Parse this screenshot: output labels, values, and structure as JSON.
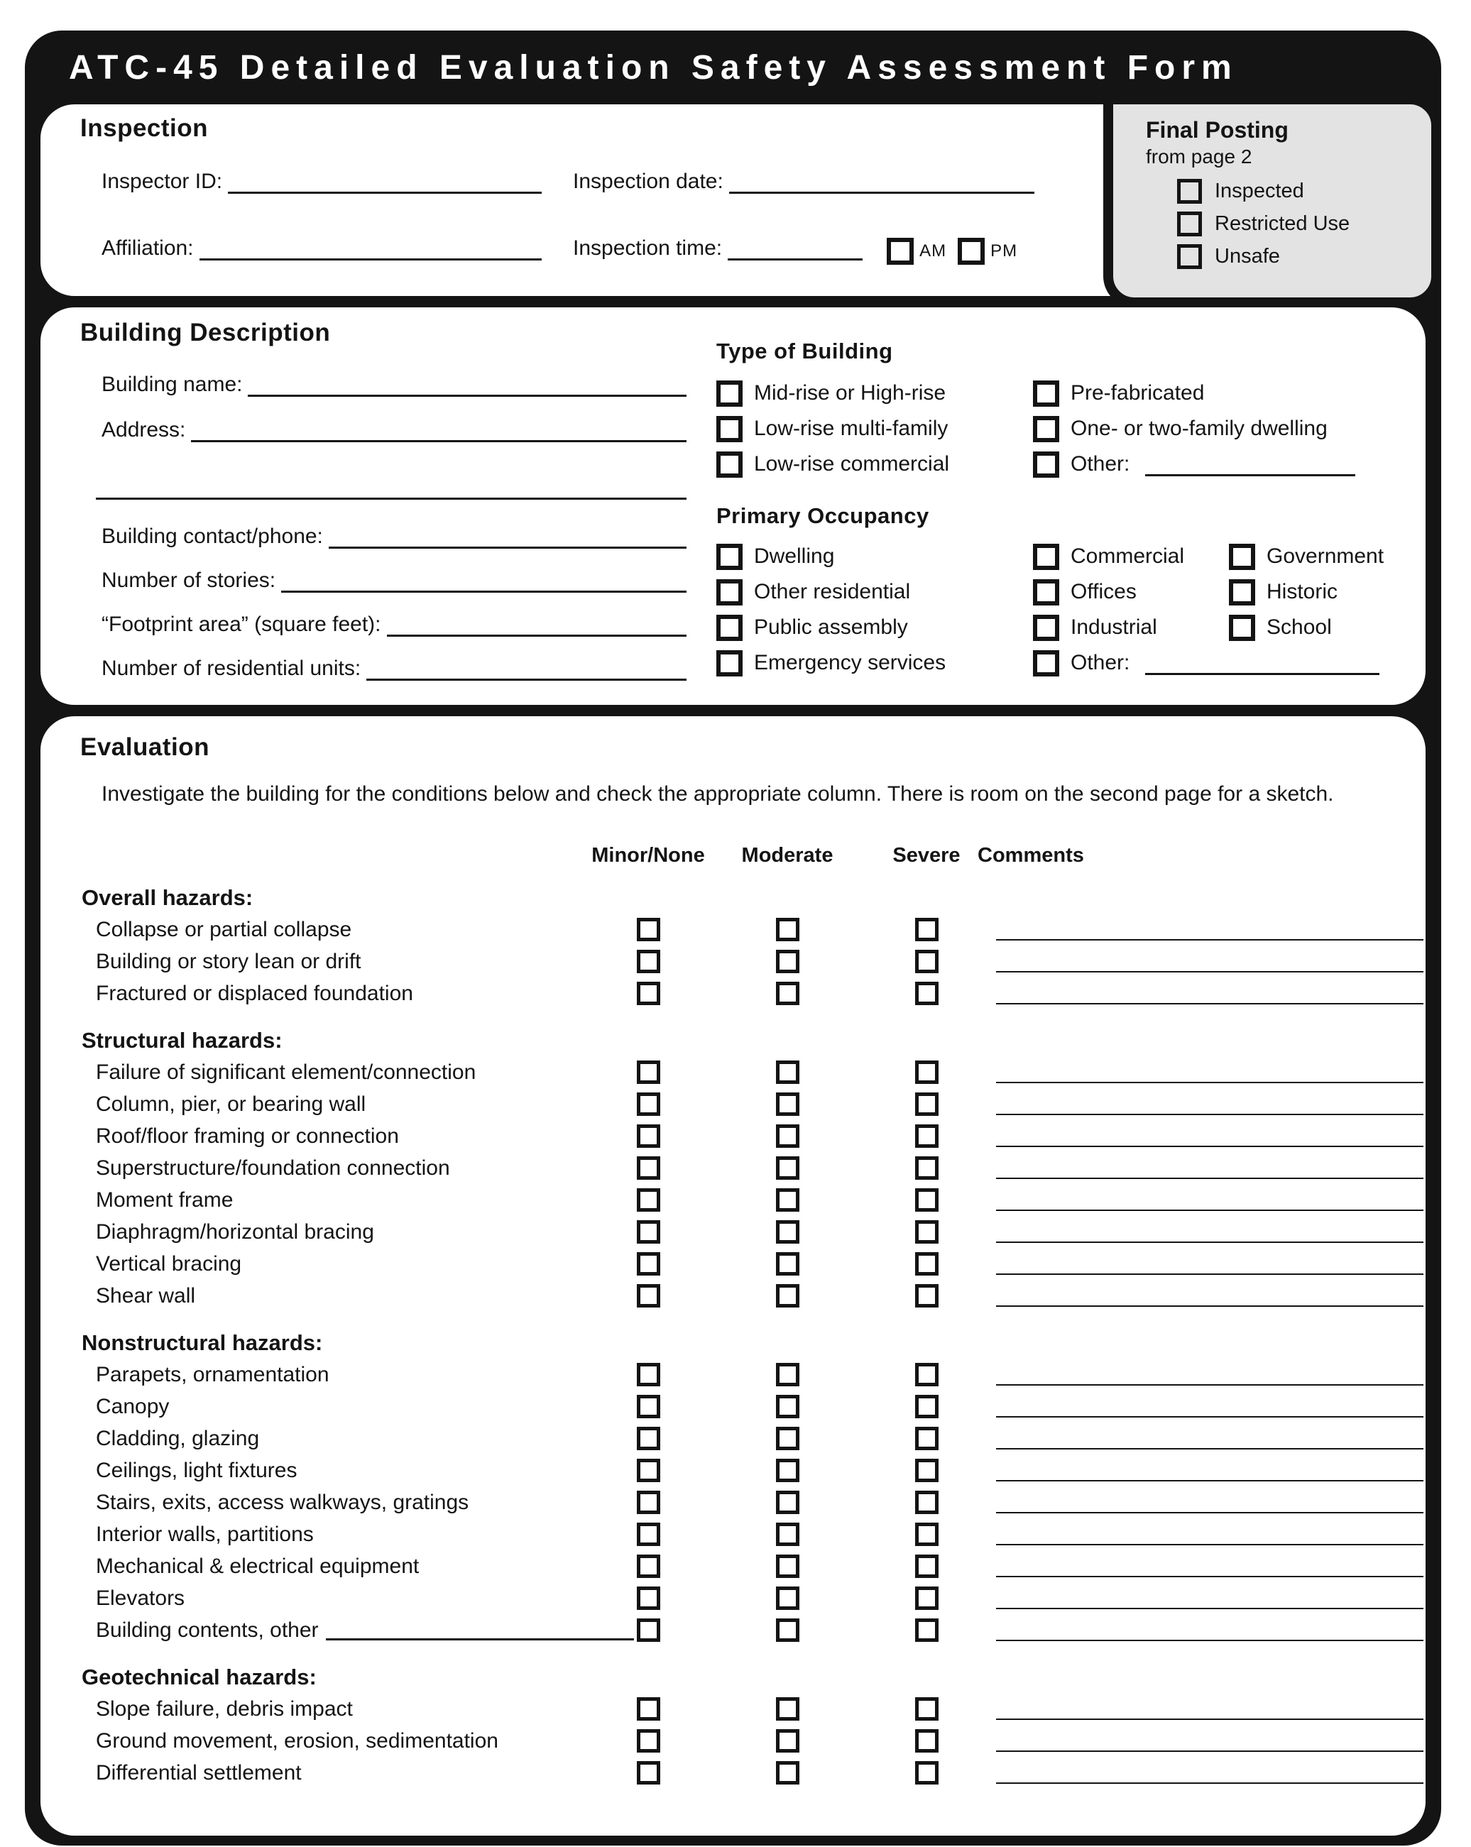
{
  "title": "ATC-45 Detailed Evaluation Safety Assessment Form",
  "colors": {
    "ink": "#141414",
    "panel_gray": "#e3e3e3",
    "paper": "#ffffff"
  },
  "inspection": {
    "heading": "Inspection",
    "fields": {
      "inspector_id": "Inspector ID:",
      "inspection_date": "Inspection date:",
      "affiliation": "Affiliation:",
      "inspection_time": "Inspection time:",
      "am": "AM",
      "pm": "PM"
    },
    "final_posting": {
      "heading": "Final Posting",
      "subheading": "from page 2",
      "options": [
        "Inspected",
        "Restricted Use",
        "Unsafe"
      ]
    }
  },
  "building": {
    "heading": "Building Description",
    "fields": [
      "Building name:",
      "Address:",
      "Building contact/phone:",
      "Number of stories:",
      "“Footprint area” (square feet):",
      "Number of residential units:"
    ],
    "type_of_building": {
      "heading": "Type of Building",
      "columns": [
        [
          "Mid-rise or High-rise",
          "Low-rise multi-family",
          "Low-rise commercial"
        ],
        [
          "Pre-fabricated",
          "One- or two-family dwelling",
          "Other:"
        ]
      ]
    },
    "primary_occupancy": {
      "heading": "Primary Occupancy",
      "columns": [
        [
          "Dwelling",
          "Other residential",
          "Public assembly",
          "Emergency services"
        ],
        [
          "Commercial",
          "Offices",
          "Industrial",
          "Other:"
        ],
        [
          "Government",
          "Historic",
          "School"
        ]
      ]
    }
  },
  "evaluation": {
    "heading": "Evaluation",
    "instructions": "Investigate the building for the conditions below and check the appropriate column. There is room on the second page for a sketch.",
    "columns": [
      "Minor/None",
      "Moderate",
      "Severe",
      "Comments"
    ],
    "inline_line_row": "Building contents, other",
    "groups": [
      {
        "name": "Overall hazards:",
        "rows": [
          "Collapse or partial collapse",
          "Building or story lean or drift",
          "Fractured or displaced foundation"
        ]
      },
      {
        "name": "Structural hazards:",
        "rows": [
          "Failure of significant element/connection",
          "Column, pier, or bearing wall",
          "Roof/floor framing or connection",
          "Superstructure/foundation connection",
          "Moment frame",
          "Diaphragm/horizontal bracing",
          "Vertical bracing",
          "Shear wall"
        ]
      },
      {
        "name": "Nonstructural hazards:",
        "rows": [
          "Parapets, ornamentation",
          "Canopy",
          "Cladding, glazing",
          "Ceilings, light fixtures",
          "Stairs, exits, access walkways, gratings",
          "Interior walls, partitions",
          "Mechanical & electrical equipment",
          "Elevators",
          "Building contents, other"
        ]
      },
      {
        "name": "Geotechnical hazards:",
        "rows": [
          "Slope failure, debris impact",
          "Ground movement, erosion, sedimentation",
          "Differential settlement"
        ]
      }
    ]
  }
}
